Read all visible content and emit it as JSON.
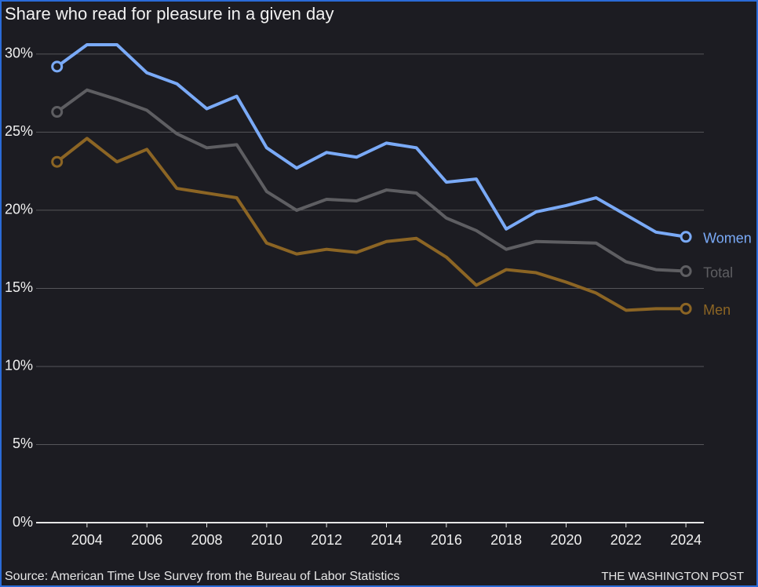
{
  "chart_data": {
    "type": "line",
    "title": "Share who read for pleasure in a given day",
    "source": "Source: American Time Use Survey from the Bureau of Labor Statistics",
    "credit": "THE WASHINGTON POST",
    "x": [
      2003,
      2004,
      2005,
      2006,
      2007,
      2008,
      2009,
      2010,
      2011,
      2012,
      2013,
      2014,
      2015,
      2016,
      2017,
      2018,
      2019,
      2020,
      2021,
      2022,
      2023,
      2024
    ],
    "series": [
      {
        "name": "Women",
        "color": "#7aaaf7",
        "values": [
          29.2,
          30.6,
          30.6,
          28.8,
          28.1,
          26.5,
          27.3,
          24.0,
          22.7,
          23.7,
          23.4,
          24.3,
          24.0,
          21.8,
          22.0,
          18.8,
          19.9,
          20.3,
          20.8,
          19.7,
          18.6,
          18.3
        ]
      },
      {
        "name": "Total",
        "color": "#5e5e62",
        "values": [
          26.3,
          27.7,
          27.1,
          26.4,
          24.9,
          24.0,
          24.2,
          21.2,
          20.0,
          20.7,
          20.6,
          21.3,
          21.1,
          19.5,
          18.7,
          17.5,
          18.0,
          17.95,
          17.9,
          16.7,
          16.2,
          16.1
        ]
      },
      {
        "name": "Men",
        "color": "#8c6524",
        "values": [
          23.1,
          24.6,
          23.1,
          23.9,
          21.4,
          21.1,
          20.8,
          17.9,
          17.2,
          17.5,
          17.3,
          18.0,
          18.2,
          17.0,
          15.2,
          16.2,
          16.0,
          15.4,
          14.7,
          13.6,
          13.7,
          13.7
        ]
      }
    ],
    "xlim": [
      2002.3,
      2024.6
    ],
    "xticks": [
      2004,
      2006,
      2008,
      2010,
      2012,
      2014,
      2016,
      2018,
      2020,
      2022,
      2024
    ],
    "ylim": [
      0,
      31
    ],
    "yticks": [
      {
        "value": 0,
        "label": "0%"
      },
      {
        "value": 5,
        "label": "5%"
      },
      {
        "value": 10,
        "label": "10%"
      },
      {
        "value": 15,
        "label": "15%"
      },
      {
        "value": 20,
        "label": "20%"
      },
      {
        "value": 25,
        "label": "25%"
      },
      {
        "value": 30,
        "label": "30%"
      }
    ],
    "grid": true
  }
}
